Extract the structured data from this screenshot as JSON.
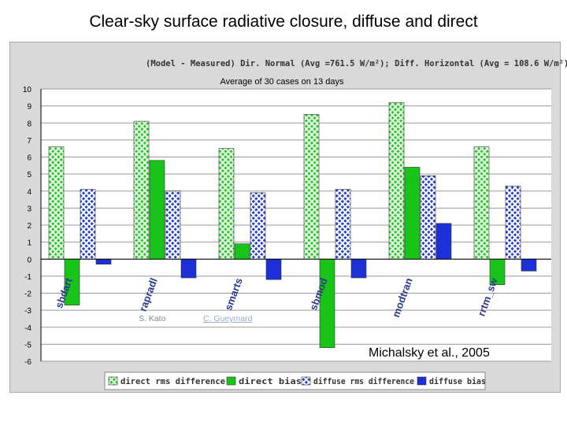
{
  "slide": {
    "title": "Clear-sky surface radiative closure, diffuse and direct"
  },
  "chart_data": {
    "type": "bar",
    "title": "(Model - Measured) Dir. Normal (Avg =761.5 W/m²); Diff. Horizontal (Avg = 108.6 W/m²)",
    "subtitle": "Average of 30 cases on 13 days",
    "categories": [
      "sbdart",
      "rapradl",
      "smarts",
      "sbmod",
      "modtran",
      "rrtm_sw"
    ],
    "series": [
      {
        "name": "direct rms difference",
        "values": [
          6.6,
          8.1,
          6.5,
          8.5,
          9.2,
          6.6
        ],
        "color": "#33cc33",
        "pattern": "hatch"
      },
      {
        "name": "direct bias",
        "values": [
          -2.7,
          5.8,
          0.9,
          -5.2,
          5.4,
          -1.5
        ],
        "color": "#19c419",
        "pattern": "solid"
      },
      {
        "name": "diffuse rms difference",
        "values": [
          4.1,
          4.0,
          3.9,
          4.1,
          4.9,
          4.3
        ],
        "color": "#1f3fcc",
        "pattern": "hatch"
      },
      {
        "name": "diffuse bias",
        "values": [
          -0.3,
          -1.1,
          -1.2,
          -1.1,
          2.1,
          -0.7
        ],
        "color": "#1d2fd6",
        "pattern": "solid"
      }
    ],
    "ylim": [
      -6,
      10
    ],
    "yticks": [
      "10",
      "9",
      "8",
      "7",
      "6",
      "5",
      "4",
      "3",
      "2",
      "1",
      "0",
      "-1",
      "-2",
      "-3",
      "-4",
      "-5",
      "-6"
    ],
    "grid": true,
    "legend": "bottom",
    "annotations": {
      "author1": "S. Kato",
      "author2": "C. Gueymard",
      "citation": "Michalsky et al., 2005"
    }
  }
}
